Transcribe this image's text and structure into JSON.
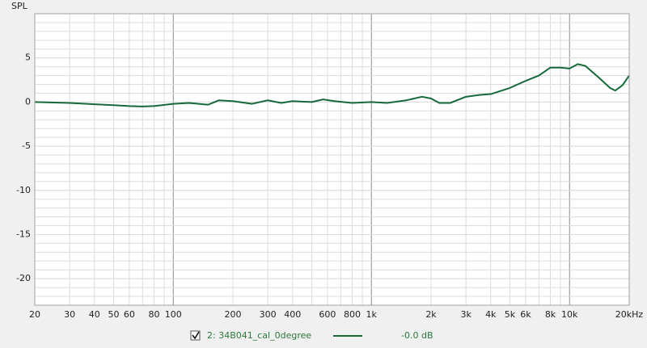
{
  "chart_data": {
    "type": "line",
    "y_label": "SPL",
    "x": [
      20,
      30,
      40,
      50,
      60,
      70,
      80,
      100,
      120,
      150,
      170,
      200,
      250,
      300,
      350,
      400,
      500,
      570,
      650,
      800,
      1000,
      1200,
      1500,
      1800,
      2000,
      2200,
      2500,
      3000,
      3500,
      4000,
      5000,
      6000,
      7000,
      8000,
      9000,
      10000,
      11000,
      12000,
      14000,
      16000,
      17000,
      18500,
      20000
    ],
    "series": [
      {
        "name": "2: 34B041_cal_0degree",
        "color": "#16693a",
        "legend_value": "-0.0 dB",
        "values": [
          0.0,
          -0.1,
          -0.25,
          -0.35,
          -0.45,
          -0.5,
          -0.45,
          -0.2,
          -0.1,
          -0.3,
          0.2,
          0.1,
          -0.2,
          0.2,
          -0.1,
          0.1,
          0.0,
          0.3,
          0.1,
          -0.1,
          0.0,
          -0.1,
          0.2,
          0.6,
          0.4,
          -0.1,
          -0.1,
          0.6,
          0.8,
          0.9,
          1.6,
          2.4,
          3.0,
          3.9,
          3.9,
          3.8,
          4.3,
          4.1,
          2.8,
          1.6,
          1.3,
          1.9,
          3.0
        ]
      }
    ],
    "xlim": [
      20,
      20000
    ],
    "ylim": [
      -23,
      10
    ],
    "xscale": "log",
    "xticks": [
      20,
      30,
      40,
      50,
      60,
      80,
      100,
      200,
      300,
      400,
      600,
      800,
      {
        "value": 1000,
        "label": "1k"
      },
      {
        "value": 2000,
        "label": "2k"
      },
      {
        "value": 3000,
        "label": "3k"
      },
      {
        "value": 4000,
        "label": "4k"
      },
      {
        "value": 5000,
        "label": "5k"
      },
      {
        "value": 6000,
        "label": "6k"
      },
      {
        "value": 8000,
        "label": "8k"
      },
      {
        "value": 10000,
        "label": "10k"
      },
      {
        "value": 20000,
        "label": "20kHz"
      }
    ],
    "yticks": [
      5,
      0,
      -5,
      -10,
      -15,
      -20
    ],
    "grid": true
  }
}
